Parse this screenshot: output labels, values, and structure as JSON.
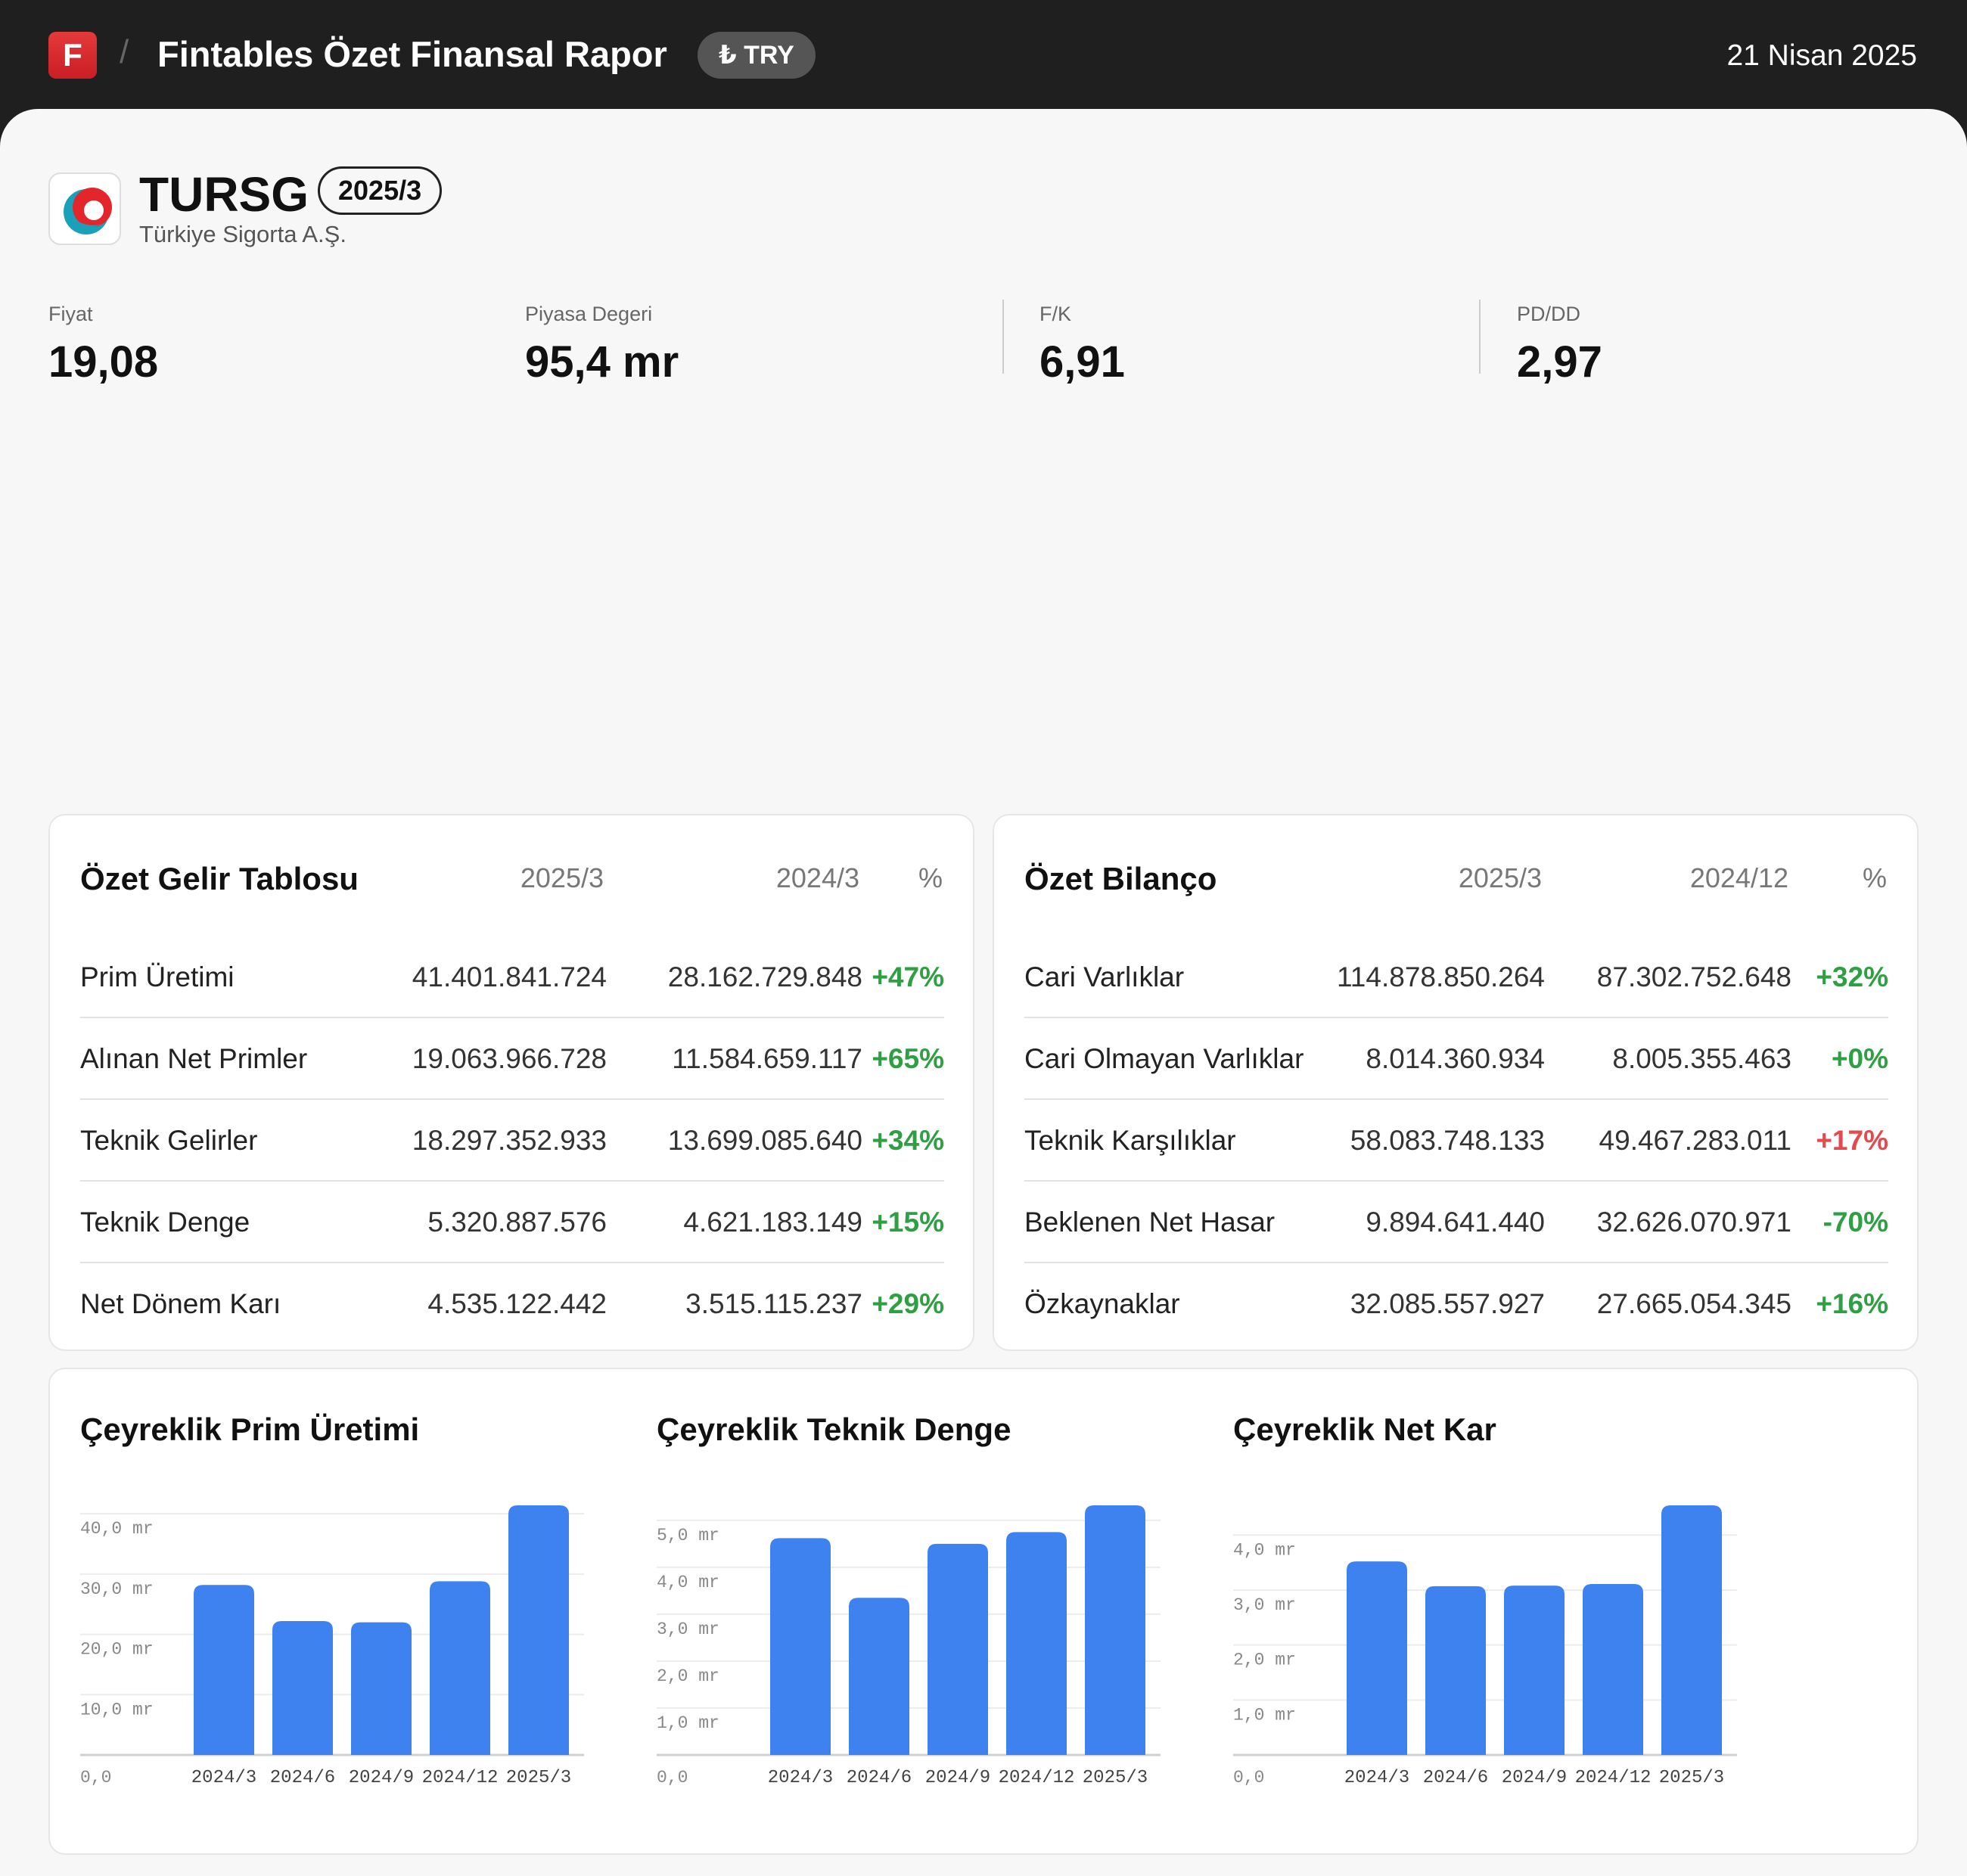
{
  "header": {
    "logo_letter": "F",
    "title": "Fintables Özet Finansal Rapor",
    "currency": "₺ TRY",
    "date": "21 Nisan 2025"
  },
  "company": {
    "ticker": "TURSG",
    "period": "2025/3",
    "name": "Türkiye Sigorta A.Ş."
  },
  "metrics": [
    {
      "label": "Fiyat",
      "value": "19,08"
    },
    {
      "label": "Piyasa Degeri",
      "value": "95,4 mr"
    },
    {
      "label": "F/K",
      "value": "6,91"
    },
    {
      "label": "PD/DD",
      "value": "2,97"
    }
  ],
  "income": {
    "title": "Özet Gelir Tablosu",
    "headers": [
      "2025/3",
      "2024/3",
      "%"
    ],
    "rows": [
      {
        "label": "Prim Üretimi",
        "current": "41.401.841.724",
        "previous": "28.162.729.848",
        "change": "+47%",
        "direction": "up"
      },
      {
        "label": "Alınan Net Primler",
        "current": "19.063.966.728",
        "previous": "11.584.659.117",
        "change": "+65%",
        "direction": "up"
      },
      {
        "label": "Teknik Gelirler",
        "current": "18.297.352.933",
        "previous": "13.699.085.640",
        "change": "+34%",
        "direction": "up"
      },
      {
        "label": "Teknik Denge",
        "current": "5.320.887.576",
        "previous": "4.621.183.149",
        "change": "+15%",
        "direction": "up"
      },
      {
        "label": "Net Dönem Karı",
        "current": "4.535.122.442",
        "previous": "3.515.115.237",
        "change": "+29%",
        "direction": "up"
      }
    ]
  },
  "balance": {
    "title": "Özet Bilanço",
    "headers": [
      "2025/3",
      "2024/12",
      "%"
    ],
    "rows": [
      {
        "label": "Cari Varlıklar",
        "current": "114.878.850.264",
        "previous": "87.302.752.648",
        "change": "+32%",
        "direction": "up"
      },
      {
        "label": "Cari Olmayan Varlıklar",
        "current": "8.014.360.934",
        "previous": "8.005.355.463",
        "change": "+0%",
        "direction": "up"
      },
      {
        "label": "Teknik Karşılıklar",
        "current": "58.083.748.133",
        "previous": "49.467.283.011",
        "change": "+17%",
        "direction": "down"
      },
      {
        "label": "Beklenen Net Hasar",
        "current": "9.894.641.440",
        "previous": "32.626.070.971",
        "change": "-70%",
        "direction": "up"
      },
      {
        "label": "Özkaynaklar",
        "current": "32.085.557.927",
        "previous": "27.665.054.345",
        "change": "+16%",
        "direction": "up"
      }
    ]
  },
  "colors": {
    "positive": "#2ea043",
    "negative": "#e5484d",
    "bar": "#3e82f0",
    "brand": "#d62a2f"
  },
  "chart_data": [
    {
      "type": "bar",
      "title": "Çeyreklik Prim Üretimi",
      "categories": [
        "2024/3",
        "2024/6",
        "2024/9",
        "2024/12",
        "2025/3"
      ],
      "values": [
        28.2,
        22.2,
        22.0,
        28.8,
        41.4
      ],
      "yticks": [
        0,
        10,
        20,
        30,
        40
      ],
      "ytick_labels": [
        "0,0",
        "10,0 mr",
        "20,0 mr",
        "30,0 mr",
        "40,0 mr"
      ],
      "ylim": [
        0,
        41.4
      ],
      "grid": true
    },
    {
      "type": "bar",
      "title": "Çeyreklik Teknik Denge",
      "categories": [
        "2024/3",
        "2024/6",
        "2024/9",
        "2024/12",
        "2025/3"
      ],
      "values": [
        4.62,
        3.35,
        4.5,
        4.75,
        5.32
      ],
      "yticks": [
        0,
        1,
        2,
        3,
        4,
        5
      ],
      "ytick_labels": [
        "0,0",
        "1,0 mr",
        "2,0 mr",
        "3,0 mr",
        "4,0 mr",
        "5,0 mr"
      ],
      "ylim": [
        0,
        5.32
      ],
      "grid": true
    },
    {
      "type": "bar",
      "title": "Çeyreklik Net Kar",
      "categories": [
        "2024/3",
        "2024/6",
        "2024/9",
        "2024/12",
        "2025/3"
      ],
      "values": [
        3.52,
        3.07,
        3.08,
        3.11,
        4.54
      ],
      "yticks": [
        0,
        1,
        2,
        3,
        4
      ],
      "ytick_labels": [
        "0,0",
        "1,0 mr",
        "2,0 mr",
        "3,0 mr",
        "4,0 mr"
      ],
      "ylim": [
        0,
        4.54
      ],
      "grid": true
    }
  ]
}
